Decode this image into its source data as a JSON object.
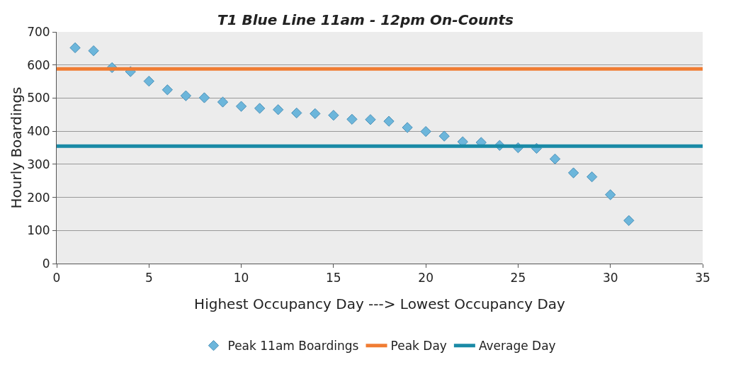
{
  "chart_data": {
    "type": "scatter",
    "title": "T1 Blue Line 11am - 12pm On-Counts",
    "xlabel": "Highest Occupancy Day ---> Lowest Occupancy Day",
    "ylabel": "Hourly Boardings",
    "xlim": [
      0,
      35
    ],
    "xticks": [
      0,
      5,
      10,
      15,
      20,
      25,
      30,
      35
    ],
    "ylim": [
      0,
      700
    ],
    "yticks": [
      0,
      100,
      200,
      300,
      400,
      500,
      600,
      700
    ],
    "grid": "y",
    "legend": "bottom",
    "series": [
      {
        "name": "Peak 11am Boardings",
        "marker": "diamond",
        "color": "#6cb6db",
        "x": [
          1,
          2,
          3,
          4,
          5,
          6,
          7,
          8,
          9,
          10,
          11,
          12,
          13,
          14,
          15,
          16,
          17,
          18,
          19,
          20,
          21,
          22,
          23,
          24,
          25,
          26,
          27,
          28,
          29,
          30,
          31
        ],
        "values": [
          652,
          643,
          592,
          580,
          551,
          525,
          507,
          501,
          488,
          475,
          469,
          465,
          455,
          453,
          448,
          436,
          435,
          430,
          411,
          399,
          385,
          368,
          366,
          357,
          350,
          348,
          316,
          274,
          262,
          208,
          130
        ]
      },
      {
        "name": "Peak Day",
        "type": "line",
        "marker": "none",
        "color": "#f07c33",
        "x": [
          0,
          35
        ],
        "values": [
          588,
          588
        ]
      },
      {
        "name": "Average Day",
        "type": "line",
        "marker": "none",
        "color": "#1a8aa6",
        "x": [
          0,
          35
        ],
        "values": [
          355,
          355
        ]
      }
    ]
  }
}
